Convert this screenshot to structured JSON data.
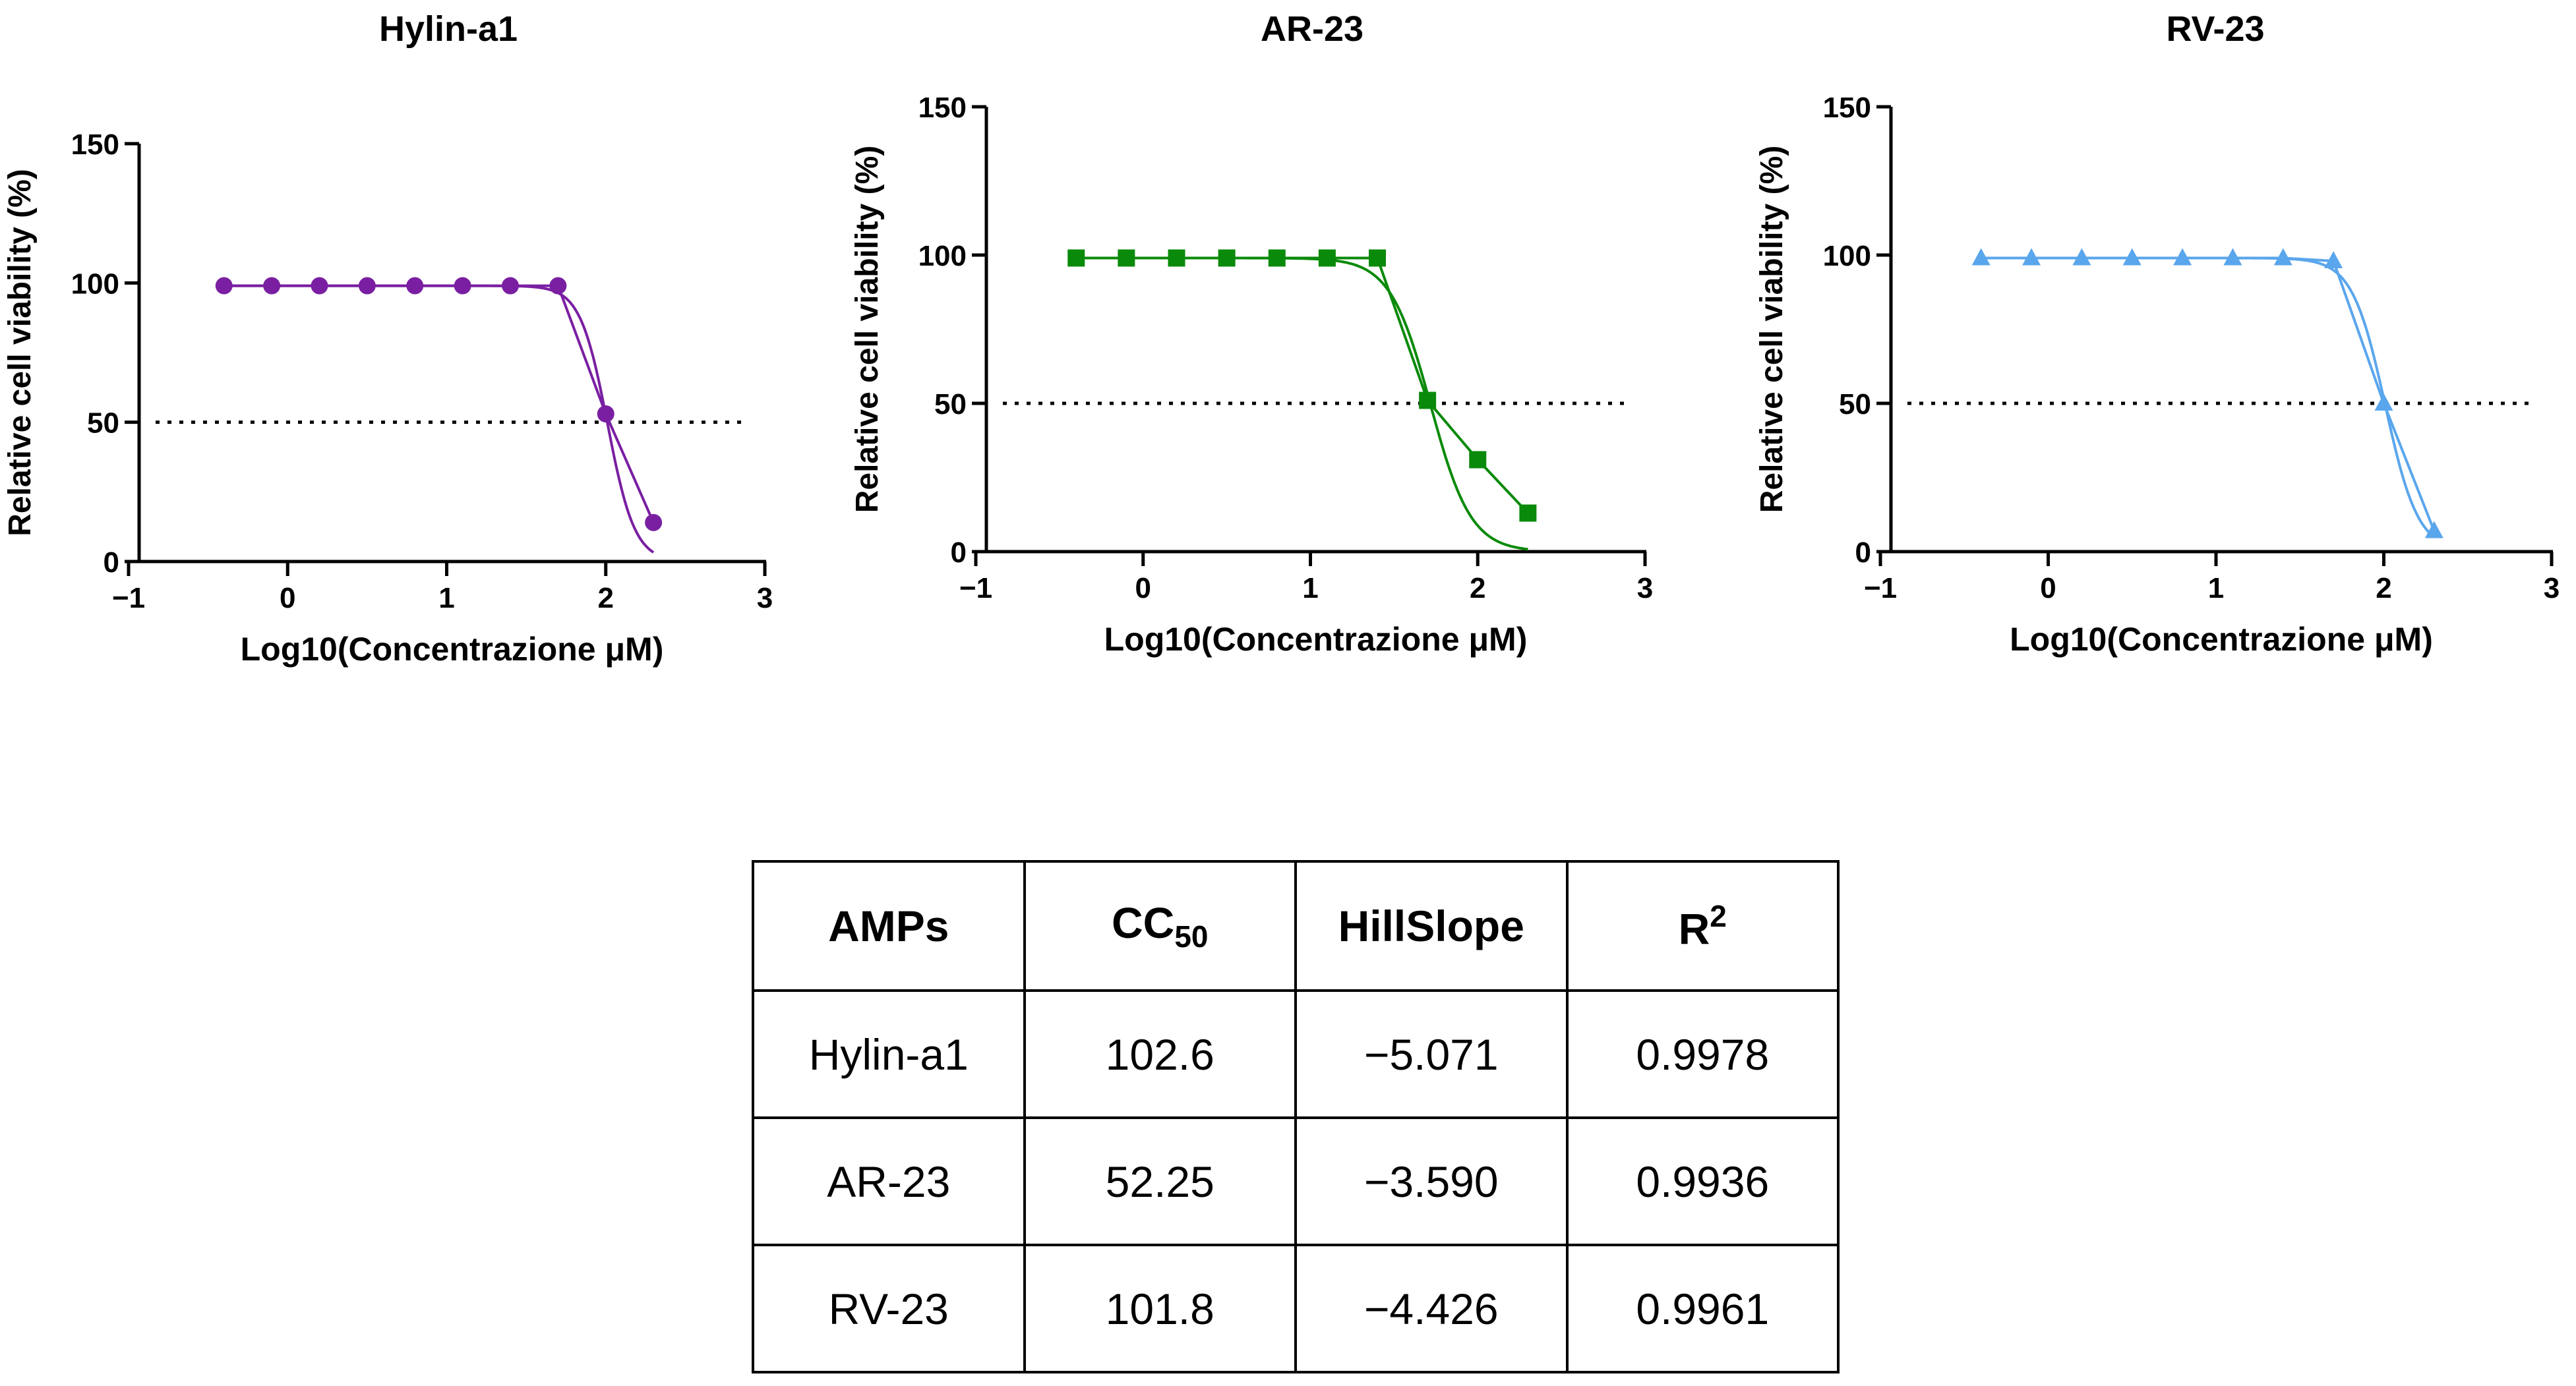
{
  "chart_data": [
    {
      "type": "line",
      "title": "Hylin-a1",
      "xlabel": "Log10(Concentrazione μM)",
      "ylabel": "Relative cell viability (%)",
      "xlim": [
        -1,
        3
      ],
      "ylim": [
        0,
        150
      ],
      "xticks": [
        -1,
        0,
        1,
        2,
        3
      ],
      "xtick_labels": [
        "−1",
        "0",
        "1",
        "2",
        "3"
      ],
      "yticks": [
        0,
        50,
        100,
        150
      ],
      "ytick_labels": [
        "0",
        "50",
        "100",
        "150"
      ],
      "reference_line_y": 50,
      "color": "#7a1fa2",
      "marker": "circle",
      "x": [
        -0.4,
        -0.1,
        0.2,
        0.5,
        0.8,
        1.1,
        1.4,
        1.7,
        2.0,
        2.3
      ],
      "y": [
        99,
        99,
        99,
        99,
        99,
        99,
        99,
        99,
        53,
        14
      ],
      "fit": {
        "top": 99,
        "bottom": 0,
        "logCC50": 2.011,
        "hillslope": -5.071
      }
    },
    {
      "type": "line",
      "title": "AR-23",
      "xlabel": "Log10(Concentrazione μM)",
      "ylabel": "Relative cell viability (%)",
      "xlim": [
        -1,
        3
      ],
      "ylim": [
        0,
        150
      ],
      "xticks": [
        -1,
        0,
        1,
        2,
        3
      ],
      "xtick_labels": [
        "−1",
        "0",
        "1",
        "2",
        "3"
      ],
      "yticks": [
        0,
        50,
        100,
        150
      ],
      "ytick_labels": [
        "0",
        "50",
        "100",
        "150"
      ],
      "reference_line_y": 50,
      "color": "#0a8a0a",
      "marker": "square",
      "x": [
        -0.4,
        -0.1,
        0.2,
        0.5,
        0.8,
        1.1,
        1.4,
        1.7,
        2.0,
        2.3
      ],
      "y": [
        99,
        99,
        99,
        99,
        99,
        99,
        99,
        51,
        31,
        13
      ],
      "fit": {
        "top": 99,
        "bottom": 0,
        "logCC50": 1.718,
        "hillslope": -3.59
      }
    },
    {
      "type": "line",
      "title": "RV-23",
      "xlabel": "Log10(Concentrazione μM)",
      "ylabel": "Relative cell viability (%)",
      "xlim": [
        -1,
        3
      ],
      "ylim": [
        0,
        150
      ],
      "xticks": [
        -1,
        0,
        1,
        2,
        3
      ],
      "xtick_labels": [
        "−1",
        "0",
        "1",
        "2",
        "3"
      ],
      "yticks": [
        0,
        50,
        100,
        150
      ],
      "ytick_labels": [
        "0",
        "50",
        "100",
        "150"
      ],
      "reference_line_y": 50,
      "color": "#5aa6ec",
      "marker": "triangle",
      "x": [
        -0.4,
        -0.1,
        0.2,
        0.5,
        0.8,
        1.1,
        1.4,
        1.7,
        2.0,
        2.3
      ],
      "y": [
        99,
        99,
        99,
        99,
        99,
        99,
        99,
        98,
        50,
        7
      ],
      "fit": {
        "top": 99,
        "bottom": 0,
        "logCC50": 2.008,
        "hillslope": -4.426
      }
    }
  ],
  "table": {
    "headers": {
      "amps": "AMPs",
      "cc_main": "CC",
      "cc_sub": "50",
      "hillslope": "HillSlope",
      "r_main": "R",
      "r_sup": "2"
    },
    "rows": [
      {
        "amp": "Hylin-a1",
        "cc50": "102.6",
        "hillslope": "−5.071",
        "r2": "0.9978"
      },
      {
        "amp": "AR-23",
        "cc50": "52.25",
        "hillslope": "−3.590",
        "r2": "0.9936"
      },
      {
        "amp": "RV-23",
        "cc50": "101.8",
        "hillslope": "−4.426",
        "r2": "0.9961"
      }
    ]
  }
}
